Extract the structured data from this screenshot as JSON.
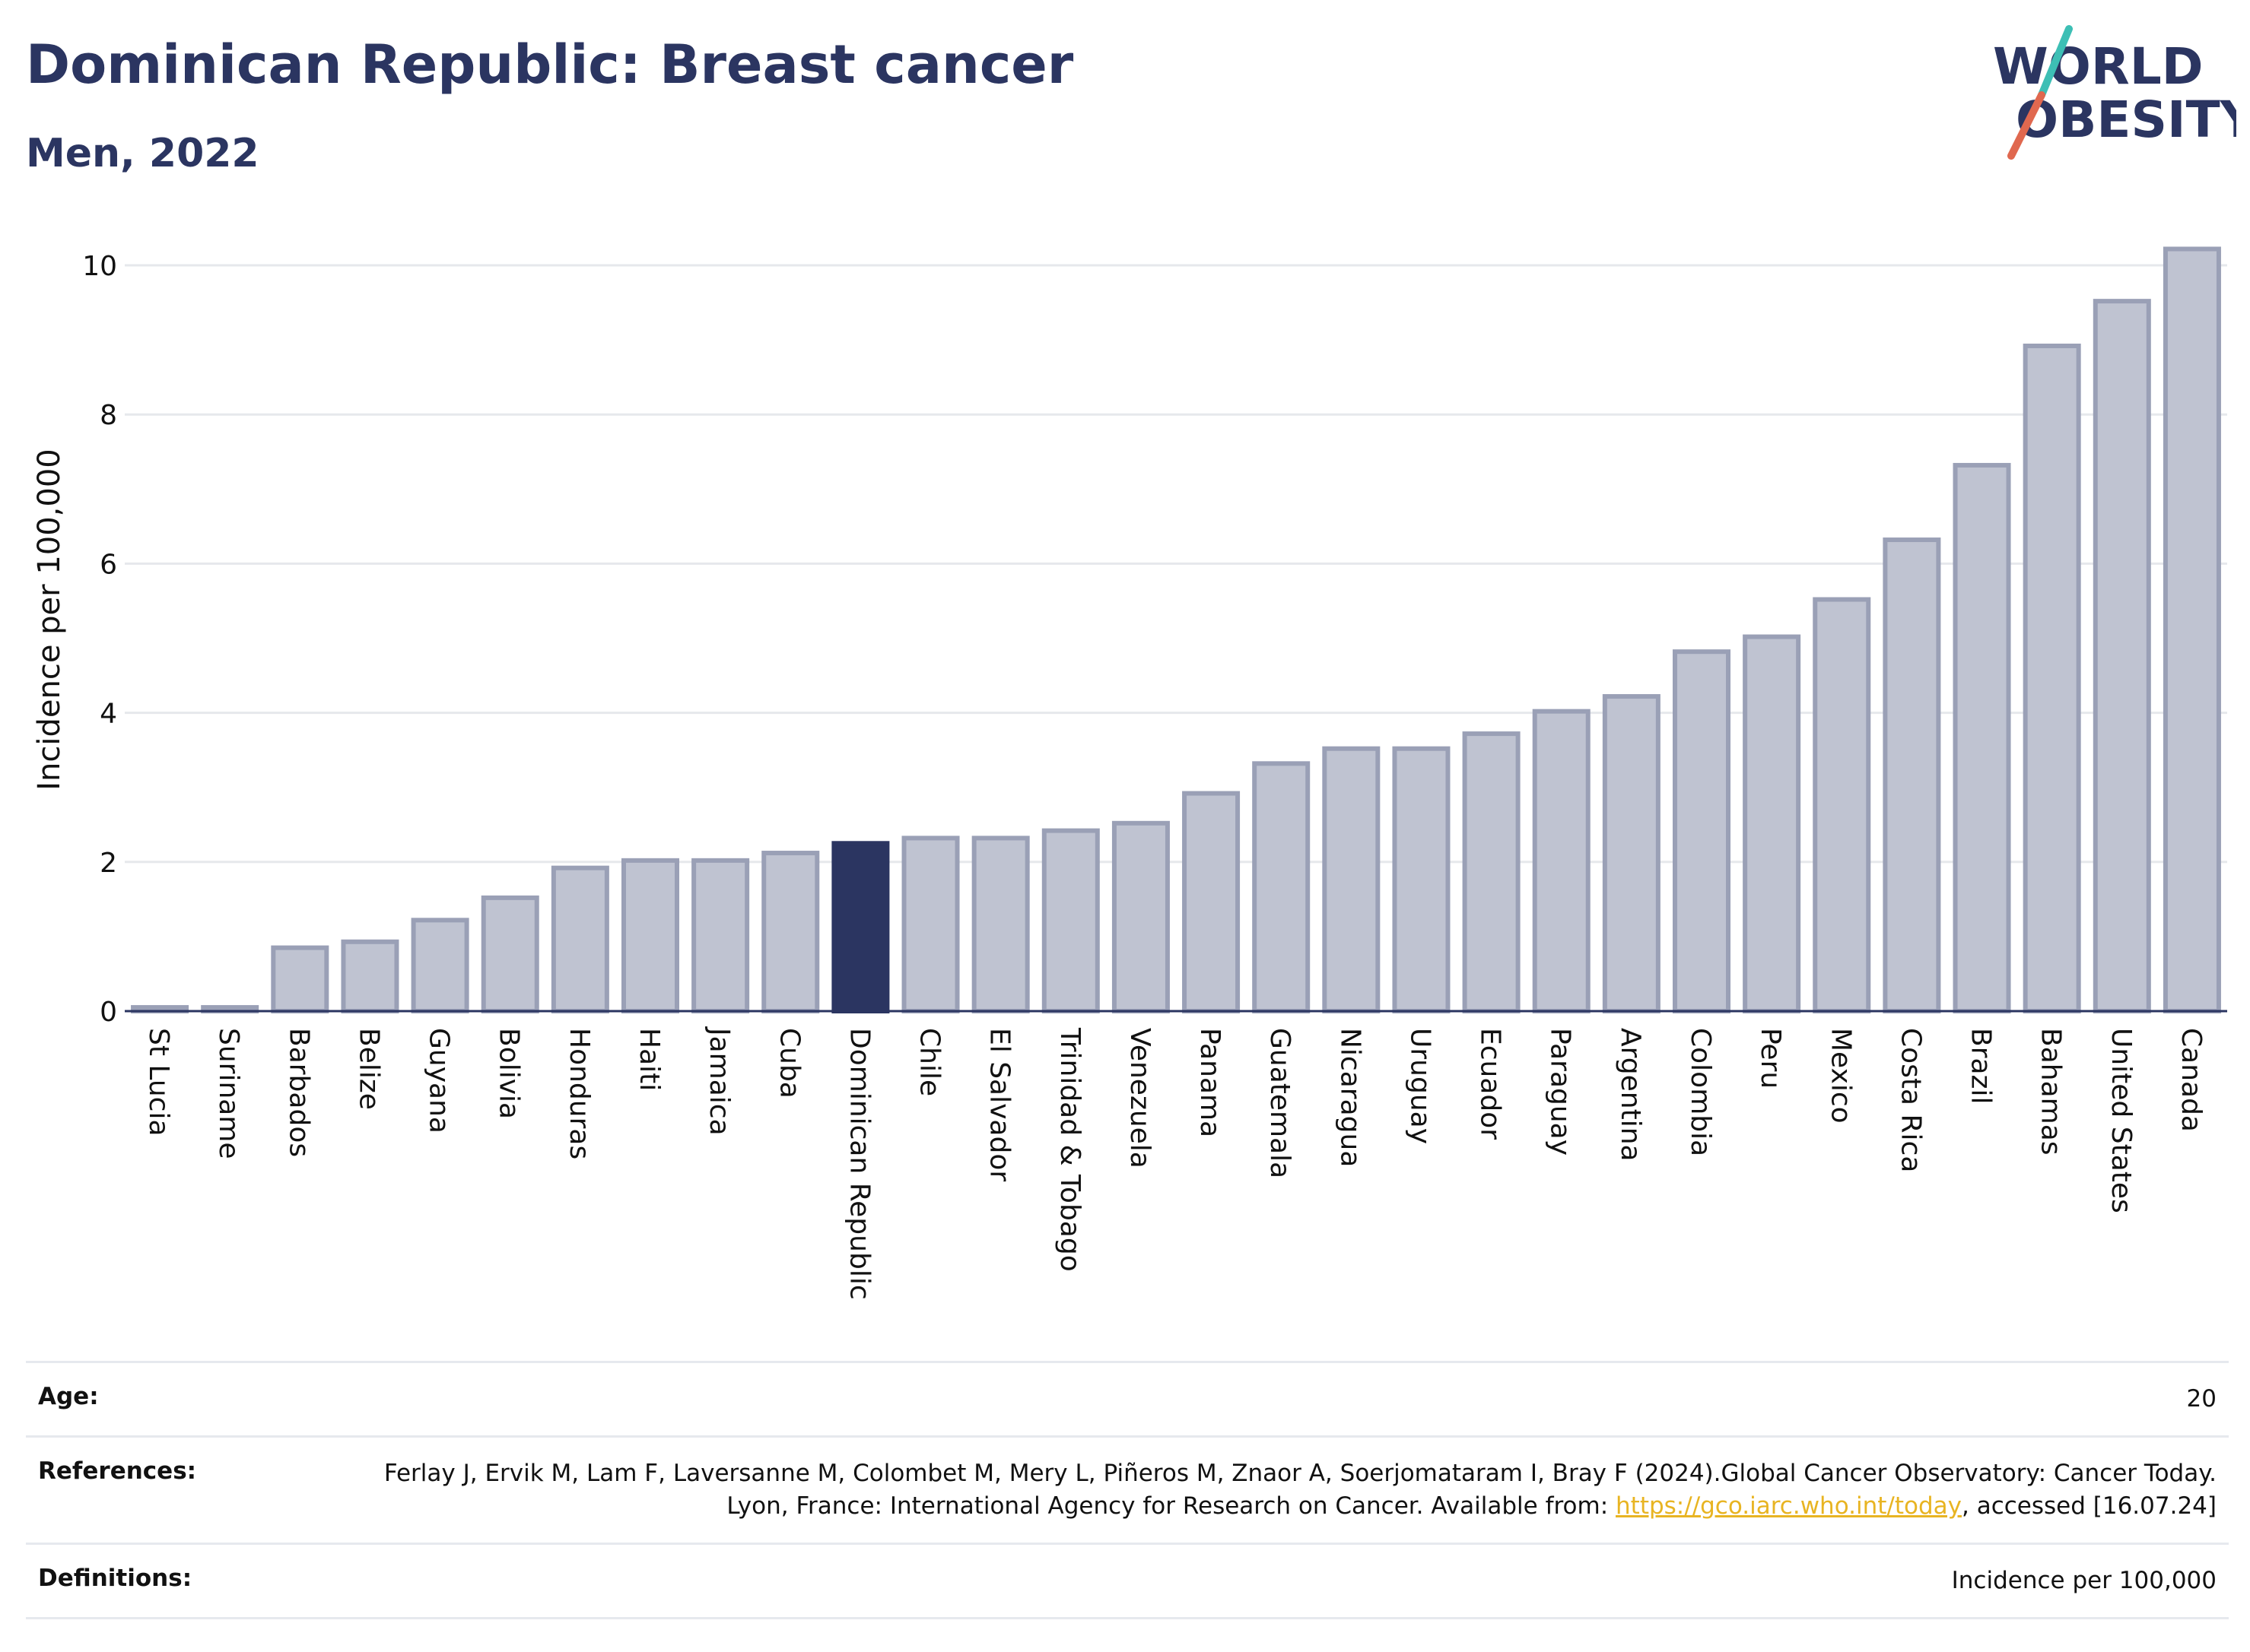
{
  "header": {
    "title": "Dominican Republic: Breast cancer",
    "subtitle": "Men, 2022",
    "logo_line1": "WORLD",
    "logo_line2": "OBESITY"
  },
  "colors": {
    "highlight": "#2b3561",
    "bar_fill": "#bfc3d1",
    "bar_stroke": "#9aa0b6",
    "logo_teal": "#3dbfb5",
    "logo_red": "#e0684f",
    "link": "#e8b422"
  },
  "chart_data": {
    "type": "bar",
    "title": "Dominican Republic: Breast cancer",
    "subtitle": "Men, 2022",
    "ylabel": "Incidence per 100,000",
    "xlabel": "",
    "ylim": [
      0,
      10.5
    ],
    "yticks": [
      0,
      2,
      4,
      6,
      8,
      10
    ],
    "grid": true,
    "highlight_category": "Dominican Republic",
    "categories": [
      "St Lucia",
      "Suriname",
      "Barbados",
      "Belize",
      "Guyana",
      "Bolivia",
      "Honduras",
      "Haiti",
      "Jamaica",
      "Cuba",
      "Dominican Republic",
      "Chile",
      "El Salvador",
      "Trinidad & Tobago",
      "Venezuela",
      "Panama",
      "Guatemala",
      "Nicaragua",
      "Uruguay",
      "Ecuador",
      "Paraguay",
      "Argentina",
      "Colombia",
      "Peru",
      "Mexico",
      "Costa Rica",
      "Brazil",
      "Bahamas",
      "United States",
      "Canada"
    ],
    "values": [
      0.05,
      0.05,
      0.85,
      0.93,
      1.22,
      1.52,
      1.92,
      2.02,
      2.02,
      2.12,
      2.25,
      2.32,
      2.32,
      2.42,
      2.52,
      2.92,
      3.32,
      3.52,
      3.52,
      3.72,
      4.02,
      4.22,
      4.82,
      5.02,
      5.52,
      6.32,
      7.32,
      8.92,
      9.52,
      10.22
    ]
  },
  "info": {
    "age_label": "Age:",
    "age_value": "20",
    "references_label": "References:",
    "references_text_1": "Ferlay J, Ervik M, Lam F, Laversanne M, Colombet M, Mery L, Piñeros M, Znaor A, Soerjomataram I, Bray F (2024).Global Cancer Observatory: Cancer Today. Lyon, France: International Agency for Research on Cancer. Available from: ",
    "references_link": "https://gco.iarc.who.int/today",
    "references_text_2": ", accessed [16.07.24]",
    "definitions_label": "Definitions:",
    "definitions_value": "Incidence per 100,000"
  }
}
